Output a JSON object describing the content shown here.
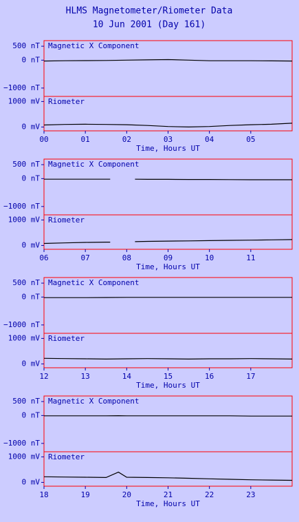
{
  "title": "HLMS Magnetometer/Riometer Data",
  "subtitle": "10 Jun 2001 (Day 161)",
  "chart_data": [
    {
      "type": "line",
      "title": "Magnetic X Component",
      "color": "#000000",
      "x": [
        0,
        0.5,
        1,
        1.5,
        2,
        2.5,
        3,
        3.5,
        4,
        4.5,
        5,
        5.5,
        6
      ],
      "values": [
        -30,
        -20,
        -15,
        -10,
        0,
        10,
        20,
        0,
        -20,
        -20,
        -20,
        -25,
        -30
      ],
      "xlim": [
        0,
        6
      ],
      "ylim": [
        -1300,
        700
      ],
      "yticks": [
        {
          "value": 500,
          "label": "500 nT"
        },
        {
          "value": 0,
          "label": "0 nT"
        },
        {
          "value": -1000,
          "label": "−1000 nT"
        }
      ]
    },
    {
      "type": "line",
      "title": "Riometer",
      "color": "#000000",
      "x": [
        0,
        0.5,
        1,
        1.5,
        2,
        2.5,
        3,
        3.5,
        4,
        4.5,
        5,
        5.5,
        6
      ],
      "values": [
        80,
        100,
        110,
        100,
        90,
        60,
        20,
        0,
        20,
        60,
        90,
        110,
        150
      ],
      "xlim": [
        0,
        6
      ],
      "ylim": [
        -150,
        1200
      ],
      "yticks": [
        {
          "value": 1000,
          "label": "1000 mV"
        },
        {
          "value": 0,
          "label": "0 mV"
        }
      ],
      "xticks": [
        {
          "value": 0,
          "label": "00"
        },
        {
          "value": 1,
          "label": "01"
        },
        {
          "value": 2,
          "label": "02"
        },
        {
          "value": 3,
          "label": "03"
        },
        {
          "value": 4,
          "label": "04"
        },
        {
          "value": 5,
          "label": "05"
        }
      ],
      "xlabel": "Time, Hours UT"
    },
    {
      "type": "line",
      "title": "Magnetic X Component",
      "color": "#000000",
      "x": [
        6,
        6.5,
        7,
        7.5,
        7.6,
        7.9,
        8.2,
        8.5,
        9,
        9.5,
        10,
        10.5,
        11,
        11.5,
        12
      ],
      "values": [
        -20,
        -20,
        -20,
        -20,
        -20,
        null,
        -20,
        -25,
        -25,
        -30,
        -30,
        -35,
        -40,
        -40,
        -40
      ],
      "xlim": [
        6,
        12
      ],
      "ylim": [
        -1300,
        700
      ],
      "yticks": [
        {
          "value": 500,
          "label": "500 nT"
        },
        {
          "value": 0,
          "label": "0 nT"
        },
        {
          "value": -1000,
          "label": "−1000 nT"
        }
      ]
    },
    {
      "type": "line",
      "title": "Riometer",
      "color": "#000000",
      "x": [
        6,
        6.5,
        7,
        7.5,
        7.6,
        7.9,
        8.2,
        8.5,
        9,
        9.5,
        10,
        10.5,
        11,
        11.5,
        12
      ],
      "values": [
        80,
        100,
        120,
        130,
        130,
        null,
        150,
        160,
        170,
        180,
        190,
        200,
        210,
        220,
        230
      ],
      "xlim": [
        6,
        12
      ],
      "ylim": [
        -150,
        1200
      ],
      "yticks": [
        {
          "value": 1000,
          "label": "1000 mV"
        },
        {
          "value": 0,
          "label": "0 mV"
        }
      ],
      "xticks": [
        {
          "value": 6,
          "label": "06"
        },
        {
          "value": 7,
          "label": "07"
        },
        {
          "value": 8,
          "label": "08"
        },
        {
          "value": 9,
          "label": "09"
        },
        10,
        11
      ],
      "xlabel": "Time, Hours UT"
    },
    {
      "type": "line",
      "title": "Magnetic X Component",
      "color": "#000000",
      "x": [
        12,
        12.5,
        13,
        13.5,
        14,
        14.5,
        15,
        15.5,
        16,
        16.5,
        17,
        17.5,
        18
      ],
      "values": [
        -20,
        -20,
        -20,
        -15,
        -10,
        -10,
        -10,
        -10,
        -10,
        -10,
        -10,
        -10,
        -10
      ],
      "xlim": [
        12,
        18
      ],
      "ylim": [
        -1300,
        700
      ],
      "yticks": [
        {
          "value": 500,
          "label": "500 nT"
        },
        {
          "value": 0,
          "label": "0 nT"
        },
        {
          "value": -1000,
          "label": "−1000 nT"
        }
      ]
    },
    {
      "type": "line",
      "title": "Riometer",
      "color": "#000000",
      "x": [
        12,
        12.5,
        13,
        13.5,
        14,
        14.5,
        15,
        15.5,
        16,
        16.5,
        17,
        17.5,
        18
      ],
      "values": [
        220,
        210,
        200,
        190,
        200,
        210,
        200,
        190,
        200,
        200,
        210,
        200,
        190
      ],
      "xlim": [
        12,
        18
      ],
      "ylim": [
        -150,
        1200
      ],
      "yticks": [
        {
          "value": 1000,
          "label": "1000 mV"
        },
        {
          "value": 0,
          "label": "0 mV"
        }
      ],
      "xticks": [
        12,
        13,
        14,
        15,
        16,
        17
      ],
      "xlabel": "Time, Hours UT"
    },
    {
      "type": "line",
      "title": "Magnetic X Component",
      "color": "#000000",
      "x": [
        18,
        18.5,
        19,
        19.5,
        19.8,
        20,
        20.5,
        21,
        21.5,
        22,
        22.5,
        23,
        23.5,
        24
      ],
      "values": [
        -10,
        -10,
        -10,
        -10,
        -5,
        -10,
        -10,
        -10,
        -10,
        -10,
        -10,
        -20,
        -20,
        -20
      ],
      "xlim": [
        18,
        24
      ],
      "ylim": [
        -1300,
        700
      ],
      "yticks": [
        {
          "value": 500,
          "label": "500 nT"
        },
        {
          "value": 0,
          "label": "0 nT"
        },
        {
          "value": -1000,
          "label": "−1000 nT"
        }
      ]
    },
    {
      "type": "line",
      "title": "Riometer",
      "color": "#000000",
      "x": [
        18,
        18.5,
        19,
        19.5,
        19.8,
        20,
        20.5,
        21,
        21.5,
        22,
        22.5,
        23,
        23.5,
        24
      ],
      "values": [
        220,
        210,
        200,
        190,
        400,
        200,
        190,
        180,
        160,
        140,
        120,
        100,
        90,
        80
      ],
      "xlim": [
        18,
        24
      ],
      "ylim": [
        -150,
        1200
      ],
      "yticks": [
        {
          "value": 1000,
          "label": "1000 mV"
        },
        {
          "value": 0,
          "label": "0 mV"
        }
      ],
      "xticks": [
        18,
        19,
        20,
        21,
        22,
        23
      ],
      "xlabel": "Time, Hours UT"
    }
  ]
}
